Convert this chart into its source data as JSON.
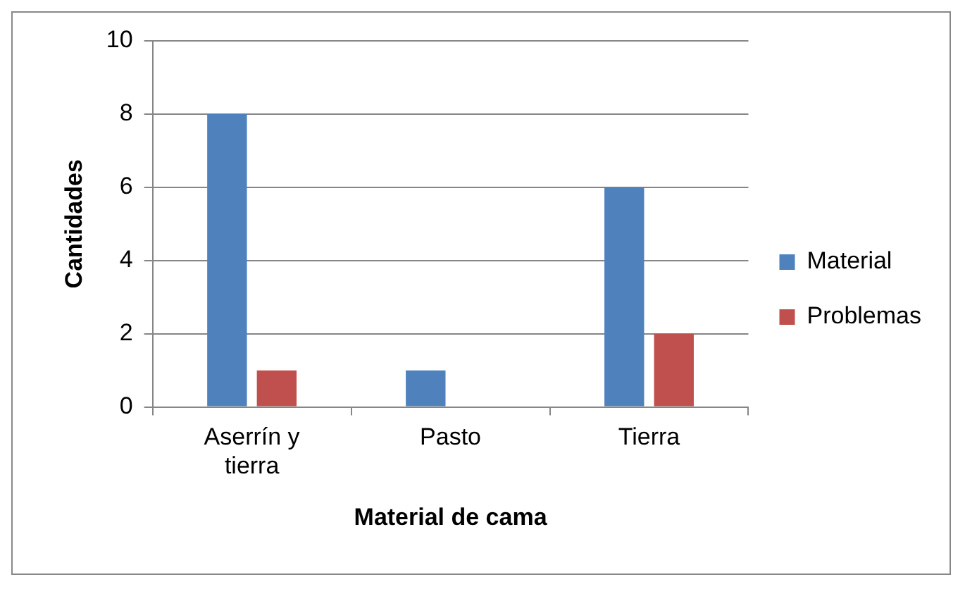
{
  "chart_data": {
    "type": "bar",
    "xlabel": "Material de cama",
    "ylabel": "Cantidades",
    "categories": [
      "Aserrín y tierra",
      "Pasto",
      "Tierra"
    ],
    "series": [
      {
        "name": "Material",
        "color": "#4f81bd",
        "values": [
          8,
          1,
          6
        ]
      },
      {
        "name": "Problemas",
        "color": "#c0504d",
        "values": [
          1,
          0,
          2
        ]
      }
    ],
    "ylim": [
      0,
      10
    ],
    "yticks": [
      0,
      2,
      4,
      6,
      8,
      10
    ],
    "grid": "y",
    "legend": "right"
  }
}
